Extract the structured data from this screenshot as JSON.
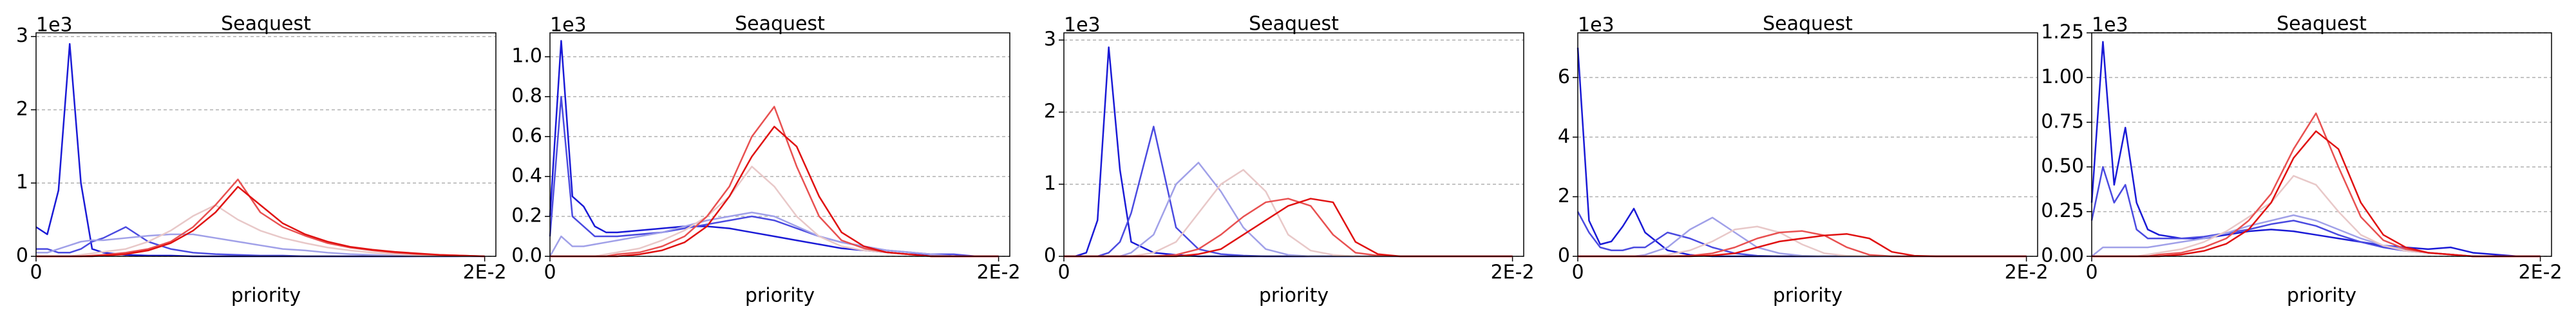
{
  "chart_data": [
    {
      "type": "line",
      "title": "Seaquest",
      "xlabel": "priority",
      "y_offset_label": "1e3",
      "x": [
        0,
        0.0005,
        0.001,
        0.0015,
        0.002,
        0.0025,
        0.003,
        0.004,
        0.005,
        0.006,
        0.007,
        0.008,
        0.009,
        0.01,
        0.011,
        0.012,
        0.013,
        0.014,
        0.015,
        0.016,
        0.017,
        0.018,
        0.019,
        0.02
      ],
      "xlim": [
        0,
        0.0205
      ],
      "xticks": [
        0,
        {
          "value": 0.02,
          "label": "2E-2"
        }
      ],
      "ylim": [
        0,
        3.05
      ],
      "yticks": [
        0,
        1,
        2,
        3
      ],
      "grid": true,
      "series": [
        {
          "color": "#1a1ad6",
          "values": [
            0.4,
            0.3,
            0.9,
            2.9,
            1.0,
            0.1,
            0.05,
            0.02,
            0.01,
            0.01,
            0,
            0,
            0,
            0,
            0,
            0,
            0,
            0,
            0,
            0,
            0,
            0,
            0,
            0
          ]
        },
        {
          "color": "#4a4ae0",
          "values": [
            0.1,
            0.1,
            0.05,
            0.05,
            0.1,
            0.2,
            0.25,
            0.4,
            0.2,
            0.1,
            0.05,
            0.03,
            0.02,
            0.01,
            0.01,
            0,
            0,
            0,
            0,
            0,
            0,
            0,
            0,
            0
          ]
        },
        {
          "color": "#a0a0e8",
          "values": [
            0.05,
            0.05,
            0.1,
            0.15,
            0.2,
            0.22,
            0.22,
            0.25,
            0.28,
            0.3,
            0.3,
            0.25,
            0.2,
            0.15,
            0.1,
            0.08,
            0.05,
            0.03,
            0.02,
            0.01,
            0,
            0,
            0,
            0
          ]
        },
        {
          "color": "#e8c8c8",
          "values": [
            0,
            0,
            0,
            0,
            0.02,
            0.04,
            0.06,
            0.1,
            0.2,
            0.35,
            0.55,
            0.7,
            0.5,
            0.35,
            0.25,
            0.18,
            0.12,
            0.08,
            0.05,
            0.03,
            0.02,
            0.01,
            0,
            0
          ]
        },
        {
          "color": "#e85050",
          "values": [
            0,
            0,
            0,
            0,
            0,
            0.01,
            0.02,
            0.05,
            0.1,
            0.2,
            0.4,
            0.7,
            1.05,
            0.6,
            0.4,
            0.28,
            0.18,
            0.12,
            0.08,
            0.05,
            0.03,
            0.02,
            0.01,
            0
          ]
        },
        {
          "color": "#e01010",
          "values": [
            0,
            0,
            0,
            0,
            0,
            0,
            0.01,
            0.03,
            0.08,
            0.18,
            0.35,
            0.6,
            0.95,
            0.7,
            0.45,
            0.3,
            0.2,
            0.13,
            0.09,
            0.06,
            0.04,
            0.02,
            0.01,
            0
          ]
        }
      ]
    },
    {
      "type": "line",
      "title": "Seaquest",
      "xlabel": "priority",
      "y_offset_label": "1e3",
      "x": [
        0,
        0.0005,
        0.001,
        0.0015,
        0.002,
        0.0025,
        0.003,
        0.004,
        0.005,
        0.006,
        0.007,
        0.008,
        0.009,
        0.01,
        0.011,
        0.012,
        0.013,
        0.014,
        0.015,
        0.016,
        0.017,
        0.018,
        0.019,
        0.02
      ],
      "xlim": [
        0,
        0.0205
      ],
      "xticks": [
        0,
        {
          "value": 0.02,
          "label": "2E-2"
        }
      ],
      "ylim": [
        0,
        1.12
      ],
      "yticks": [
        {
          "value": 0,
          "label": "0.0"
        },
        0.2,
        0.4,
        0.6,
        0.8,
        {
          "value": 1,
          "label": "1.0"
        }
      ],
      "grid": true,
      "series": [
        {
          "color": "#1a1ad6",
          "values": [
            0.2,
            1.08,
            0.3,
            0.25,
            0.15,
            0.12,
            0.12,
            0.13,
            0.14,
            0.15,
            0.15,
            0.14,
            0.12,
            0.1,
            0.08,
            0.06,
            0.04,
            0.03,
            0.02,
            0.01,
            0.01,
            0,
            0,
            0
          ]
        },
        {
          "color": "#4a4ae0",
          "values": [
            0.1,
            0.8,
            0.2,
            0.15,
            0.1,
            0.1,
            0.1,
            0.11,
            0.12,
            0.14,
            0.16,
            0.18,
            0.2,
            0.18,
            0.14,
            0.1,
            0.07,
            0.05,
            0.03,
            0.02,
            0.01,
            0.01,
            0,
            0
          ]
        },
        {
          "color": "#a0a0e8",
          "values": [
            0,
            0.1,
            0.05,
            0.05,
            0.06,
            0.07,
            0.08,
            0.1,
            0.12,
            0.15,
            0.18,
            0.2,
            0.22,
            0.2,
            0.15,
            0.1,
            0.07,
            0.05,
            0.03,
            0.02,
            0.01,
            0,
            0,
            0
          ]
        },
        {
          "color": "#e8c8c8",
          "values": [
            0,
            0,
            0,
            0,
            0,
            0.01,
            0.02,
            0.04,
            0.08,
            0.13,
            0.2,
            0.3,
            0.45,
            0.35,
            0.2,
            0.1,
            0.05,
            0.03,
            0.02,
            0.01,
            0,
            0,
            0,
            0
          ]
        },
        {
          "color": "#e85050",
          "values": [
            0,
            0,
            0,
            0,
            0,
            0,
            0.01,
            0.02,
            0.05,
            0.1,
            0.2,
            0.35,
            0.6,
            0.75,
            0.45,
            0.2,
            0.08,
            0.04,
            0.02,
            0.01,
            0,
            0,
            0,
            0
          ]
        },
        {
          "color": "#e01010",
          "values": [
            0,
            0,
            0,
            0,
            0,
            0,
            0,
            0.01,
            0.03,
            0.07,
            0.15,
            0.3,
            0.5,
            0.65,
            0.55,
            0.3,
            0.12,
            0.05,
            0.02,
            0.01,
            0,
            0,
            0,
            0
          ]
        }
      ]
    },
    {
      "type": "line",
      "title": "Seaquest",
      "xlabel": "priority",
      "y_offset_label": "1e3",
      "x": [
        0,
        0.0005,
        0.001,
        0.0015,
        0.002,
        0.0025,
        0.003,
        0.004,
        0.005,
        0.006,
        0.007,
        0.008,
        0.009,
        0.01,
        0.011,
        0.012,
        0.013,
        0.014,
        0.015,
        0.016,
        0.017,
        0.018,
        0.019,
        0.02
      ],
      "xlim": [
        0,
        0.0205
      ],
      "xticks": [
        0,
        {
          "value": 0.02,
          "label": "2E-2"
        }
      ],
      "ylim": [
        0,
        3.1
      ],
      "yticks": [
        0,
        1,
        2,
        3
      ],
      "grid": true,
      "series": [
        {
          "color": "#1a1ad6",
          "values": [
            0,
            0,
            0.05,
            0.5,
            2.9,
            1.2,
            0.2,
            0.05,
            0.02,
            0,
            0,
            0,
            0,
            0,
            0,
            0,
            0,
            0,
            0,
            0,
            0,
            0,
            0,
            0
          ]
        },
        {
          "color": "#4a4ae0",
          "values": [
            0,
            0,
            0,
            0,
            0.05,
            0.2,
            0.6,
            1.8,
            0.4,
            0.1,
            0.03,
            0.01,
            0,
            0,
            0,
            0,
            0,
            0,
            0,
            0,
            0,
            0,
            0,
            0
          ]
        },
        {
          "color": "#a0a0e8",
          "values": [
            0,
            0,
            0,
            0,
            0,
            0,
            0.05,
            0.3,
            1.0,
            1.3,
            0.9,
            0.4,
            0.1,
            0.02,
            0,
            0,
            0,
            0,
            0,
            0,
            0,
            0,
            0,
            0
          ]
        },
        {
          "color": "#e8c8c8",
          "values": [
            0,
            0,
            0,
            0,
            0,
            0,
            0,
            0.05,
            0.2,
            0.6,
            1.0,
            1.2,
            0.9,
            0.3,
            0.08,
            0.02,
            0,
            0,
            0,
            0,
            0,
            0,
            0,
            0
          ]
        },
        {
          "color": "#e85050",
          "values": [
            0,
            0,
            0,
            0,
            0,
            0,
            0,
            0,
            0.02,
            0.1,
            0.3,
            0.55,
            0.75,
            0.8,
            0.7,
            0.3,
            0.05,
            0.01,
            0,
            0,
            0,
            0,
            0,
            0
          ]
        },
        {
          "color": "#e01010",
          "values": [
            0,
            0,
            0,
            0,
            0,
            0,
            0,
            0,
            0,
            0.03,
            0.1,
            0.3,
            0.5,
            0.7,
            0.8,
            0.75,
            0.2,
            0.03,
            0,
            0,
            0,
            0,
            0,
            0
          ]
        }
      ]
    },
    {
      "type": "line",
      "title": "Seaquest",
      "xlabel": "priority",
      "y_offset_label": "1e3",
      "x": [
        0,
        0.0005,
        0.001,
        0.0015,
        0.002,
        0.0025,
        0.003,
        0.004,
        0.005,
        0.006,
        0.007,
        0.008,
        0.009,
        0.01,
        0.011,
        0.012,
        0.013,
        0.014,
        0.015,
        0.016,
        0.017,
        0.018,
        0.019,
        0.02
      ],
      "xlim": [
        0,
        0.0205
      ],
      "xticks": [
        0,
        {
          "value": 0.02,
          "label": "2E-2"
        }
      ],
      "ylim": [
        0,
        7.5
      ],
      "yticks": [
        0,
        2,
        4,
        6
      ],
      "grid": true,
      "series": [
        {
          "color": "#1a1ad6",
          "values": [
            7.0,
            1.2,
            0.4,
            0.5,
            1.0,
            1.6,
            0.8,
            0.2,
            0.05,
            0,
            0,
            0,
            0,
            0,
            0,
            0,
            0,
            0,
            0,
            0,
            0,
            0,
            0,
            0
          ]
        },
        {
          "color": "#4a4ae0",
          "values": [
            1.5,
            0.8,
            0.3,
            0.2,
            0.2,
            0.3,
            0.3,
            0.8,
            0.6,
            0.3,
            0.1,
            0.02,
            0,
            0,
            0,
            0,
            0,
            0,
            0,
            0,
            0,
            0,
            0,
            0
          ]
        },
        {
          "color": "#a0a0e8",
          "values": [
            0,
            0,
            0,
            0,
            0,
            0,
            0.05,
            0.3,
            0.9,
            1.3,
            0.8,
            0.3,
            0.1,
            0.02,
            0,
            0,
            0,
            0,
            0,
            0,
            0,
            0,
            0,
            0
          ]
        },
        {
          "color": "#e8c8c8",
          "values": [
            0,
            0,
            0,
            0,
            0,
            0,
            0,
            0.05,
            0.2,
            0.5,
            0.9,
            1.0,
            0.8,
            0.4,
            0.1,
            0.02,
            0,
            0,
            0,
            0,
            0,
            0,
            0,
            0
          ]
        },
        {
          "color": "#e85050",
          "values": [
            0,
            0,
            0,
            0,
            0,
            0,
            0,
            0,
            0.02,
            0.1,
            0.3,
            0.6,
            0.8,
            0.85,
            0.7,
            0.3,
            0.05,
            0,
            0,
            0,
            0,
            0,
            0,
            0
          ]
        },
        {
          "color": "#e01010",
          "values": [
            0,
            0,
            0,
            0,
            0,
            0,
            0,
            0,
            0,
            0.03,
            0.1,
            0.3,
            0.5,
            0.6,
            0.7,
            0.75,
            0.6,
            0.15,
            0.02,
            0,
            0,
            0,
            0,
            0
          ]
        }
      ]
    },
    {
      "type": "line",
      "title": "Seaquest",
      "xlabel": "priority",
      "y_offset_label": "1e3",
      "x": [
        0,
        0.0005,
        0.001,
        0.0015,
        0.002,
        0.0025,
        0.003,
        0.004,
        0.005,
        0.006,
        0.007,
        0.008,
        0.009,
        0.01,
        0.011,
        0.012,
        0.013,
        0.014,
        0.015,
        0.016,
        0.017,
        0.018,
        0.019,
        0.02
      ],
      "xlim": [
        0,
        0.0205
      ],
      "xticks": [
        0,
        {
          "value": 0.02,
          "label": "2E-2"
        }
      ],
      "ylim": [
        0,
        1.25
      ],
      "yticks": [
        {
          "value": 0,
          "label": "0.00"
        },
        0.25,
        {
          "value": 0.5,
          "label": "0.50"
        },
        0.75,
        {
          "value": 1,
          "label": "1.00"
        },
        1.25
      ],
      "grid": true,
      "series": [
        {
          "color": "#1a1ad6",
          "values": [
            0.3,
            1.2,
            0.4,
            0.72,
            0.3,
            0.15,
            0.12,
            0.1,
            0.1,
            0.12,
            0.14,
            0.15,
            0.14,
            0.12,
            0.1,
            0.08,
            0.06,
            0.05,
            0.04,
            0.05,
            0.02,
            0.01,
            0,
            0
          ]
        },
        {
          "color": "#4a4ae0",
          "values": [
            0.2,
            0.5,
            0.3,
            0.4,
            0.15,
            0.1,
            0.1,
            0.1,
            0.11,
            0.13,
            0.15,
            0.18,
            0.2,
            0.17,
            0.12,
            0.08,
            0.05,
            0.03,
            0.02,
            0.01,
            0,
            0,
            0,
            0
          ]
        },
        {
          "color": "#a0a0e8",
          "values": [
            0,
            0.05,
            0.05,
            0.05,
            0.05,
            0.05,
            0.06,
            0.08,
            0.1,
            0.13,
            0.17,
            0.2,
            0.23,
            0.2,
            0.15,
            0.1,
            0.06,
            0.04,
            0.02,
            0.01,
            0,
            0,
            0,
            0
          ]
        },
        {
          "color": "#e8c8c8",
          "values": [
            0,
            0,
            0,
            0,
            0,
            0.01,
            0.02,
            0.04,
            0.08,
            0.14,
            0.22,
            0.3,
            0.45,
            0.4,
            0.25,
            0.12,
            0.06,
            0.03,
            0.02,
            0.01,
            0,
            0,
            0,
            0
          ]
        },
        {
          "color": "#e85050",
          "values": [
            0,
            0,
            0,
            0,
            0,
            0,
            0.01,
            0.02,
            0.05,
            0.1,
            0.2,
            0.35,
            0.6,
            0.8,
            0.5,
            0.22,
            0.09,
            0.04,
            0.02,
            0.01,
            0,
            0,
            0,
            0
          ]
        },
        {
          "color": "#e01010",
          "values": [
            0,
            0,
            0,
            0,
            0,
            0,
            0,
            0.01,
            0.03,
            0.07,
            0.15,
            0.3,
            0.55,
            0.7,
            0.6,
            0.3,
            0.12,
            0.05,
            0.02,
            0.01,
            0,
            0,
            0,
            0
          ]
        }
      ]
    }
  ]
}
